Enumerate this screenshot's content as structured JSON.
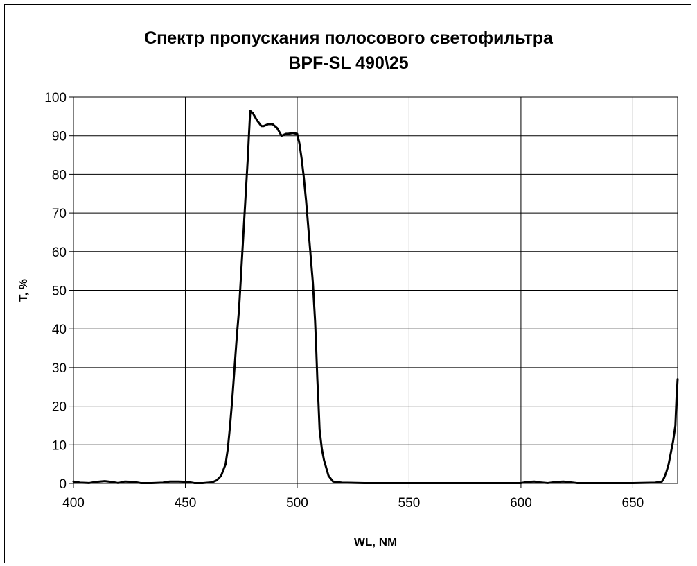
{
  "chart_data": {
    "type": "line",
    "title_line1": "Спектр пропускания полосового светофильтра",
    "title_line2": "BPF-SL 490\\25",
    "xlabel": "WL, NM",
    "ylabel": "T, %",
    "xlim": [
      400,
      670
    ],
    "ylim": [
      0,
      100
    ],
    "xticks": [
      400,
      450,
      500,
      550,
      600,
      650
    ],
    "yticks": [
      0,
      10,
      20,
      30,
      40,
      50,
      60,
      70,
      80,
      90,
      100
    ],
    "grid": true,
    "legend": "none",
    "series": [
      {
        "color": "#000000",
        "x": [
          400,
          403,
          407,
          410,
          414,
          417,
          420,
          423,
          427,
          430,
          435,
          440,
          443,
          447,
          451,
          454,
          458,
          462,
          464,
          466,
          468,
          469,
          470,
          471,
          472,
          473,
          474,
          474.5,
          475,
          475.5,
          476,
          477,
          477.5,
          478,
          478.5,
          479,
          479.5,
          480,
          481,
          482,
          484,
          485,
          487,
          489,
          491,
          493,
          495,
          496,
          498,
          500,
          501,
          502,
          503,
          504,
          505,
          506,
          507,
          508,
          508.5,
          509,
          509.5,
          510,
          511,
          512,
          514,
          516,
          520,
          530,
          550,
          580,
          600,
          603,
          606,
          608,
          612,
          616,
          619,
          622,
          625,
          630,
          640,
          650,
          660,
          663,
          664,
          665,
          666,
          667,
          668,
          669,
          669.5,
          670
        ],
        "y": [
          0.5,
          0.2,
          0.1,
          0.4,
          0.6,
          0.4,
          0.1,
          0.5,
          0.4,
          0.1,
          0.1,
          0.2,
          0.5,
          0.5,
          0.4,
          0.1,
          0.1,
          0.3,
          0.8,
          2,
          5,
          9,
          15,
          22,
          30,
          38,
          45,
          50,
          55,
          60,
          65,
          75,
          80,
          85,
          91,
          96.5,
          96,
          96,
          95,
          94,
          92.5,
          92.5,
          93,
          93,
          92,
          90,
          90.5,
          90.5,
          90.7,
          90.5,
          88,
          84,
          79,
          73,
          66,
          59,
          52,
          42,
          35,
          27,
          21,
          14,
          9,
          6,
          2,
          0.5,
          0.2,
          0.1,
          0.1,
          0.1,
          0.1,
          0.4,
          0.5,
          0.3,
          0.1,
          0.4,
          0.5,
          0.3,
          0.1,
          0.1,
          0.1,
          0.1,
          0.2,
          0.5,
          1.5,
          3,
          5,
          8,
          11,
          15,
          22,
          27
        ]
      }
    ]
  }
}
